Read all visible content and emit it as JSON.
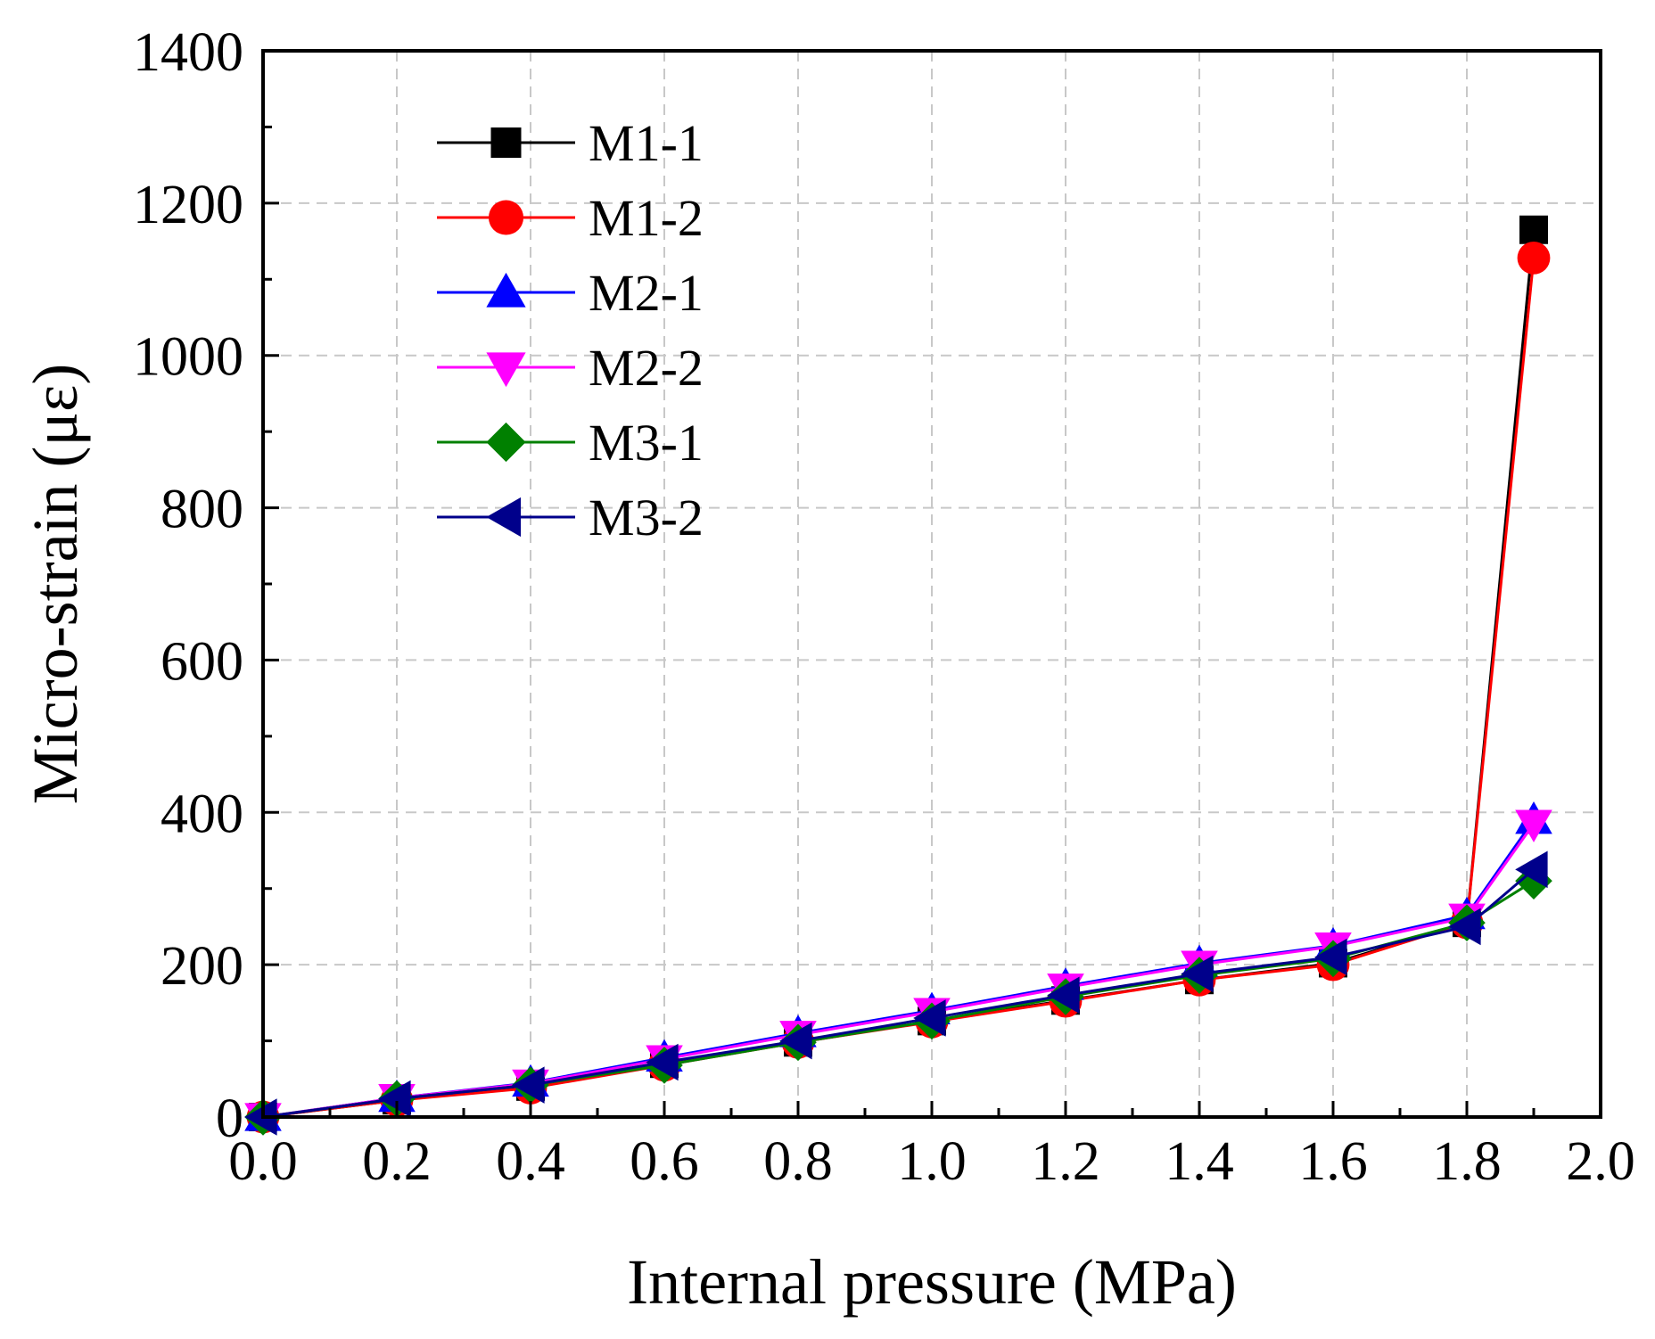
{
  "chart_data": {
    "type": "line",
    "title": "",
    "xlabel": "Internal pressure (MPa)",
    "ylabel": "Micro-strain (με)",
    "xlim": [
      0.0,
      2.0
    ],
    "ylim": [
      0,
      1400
    ],
    "xticks": [
      0.0,
      0.2,
      0.4,
      0.6,
      0.8,
      1.0,
      1.2,
      1.4,
      1.6,
      1.8,
      2.0
    ],
    "xtick_labels": [
      "0.0",
      "0.2",
      "0.4",
      "0.6",
      "0.8",
      "1.0",
      "1.2",
      "1.4",
      "1.6",
      "1.8",
      "2.0"
    ],
    "yticks": [
      0,
      200,
      400,
      600,
      800,
      1000,
      1200,
      1400
    ],
    "ytick_labels": [
      "0",
      "200",
      "400",
      "600",
      "800",
      "1000",
      "1200",
      "1400"
    ],
    "grid": true,
    "legend_position": "top-left",
    "x": [
      0.0,
      0.2,
      0.4,
      0.6,
      0.8,
      1.0,
      1.2,
      1.4,
      1.6,
      1.8,
      1.9
    ],
    "series": [
      {
        "name": "M1-1",
        "color": "#000000",
        "marker": "square",
        "values": [
          0,
          22,
          40,
          70,
          98,
          126,
          153,
          180,
          202,
          255,
          1165
        ]
      },
      {
        "name": "M1-2",
        "color": "#ff0000",
        "marker": "circle",
        "values": [
          0,
          22,
          38,
          68,
          98,
          125,
          152,
          180,
          200,
          255,
          1128
        ]
      },
      {
        "name": "M2-1",
        "color": "#0000ff",
        "marker": "triangle-up",
        "values": [
          0,
          25,
          45,
          78,
          110,
          140,
          172,
          202,
          225,
          265,
          390
        ]
      },
      {
        "name": "M2-2",
        "color": "#ff00ff",
        "marker": "triangle-down",
        "values": [
          0,
          25,
          44,
          76,
          108,
          138,
          170,
          200,
          224,
          262,
          385
        ]
      },
      {
        "name": "M3-1",
        "color": "#008000",
        "marker": "diamond",
        "values": [
          0,
          24,
          42,
          68,
          98,
          126,
          158,
          186,
          208,
          255,
          310
        ]
      },
      {
        "name": "M3-2",
        "color": "#00008b",
        "marker": "triangle-left",
        "values": [
          0,
          24,
          42,
          72,
          100,
          130,
          160,
          188,
          210,
          250,
          325
        ]
      }
    ]
  }
}
